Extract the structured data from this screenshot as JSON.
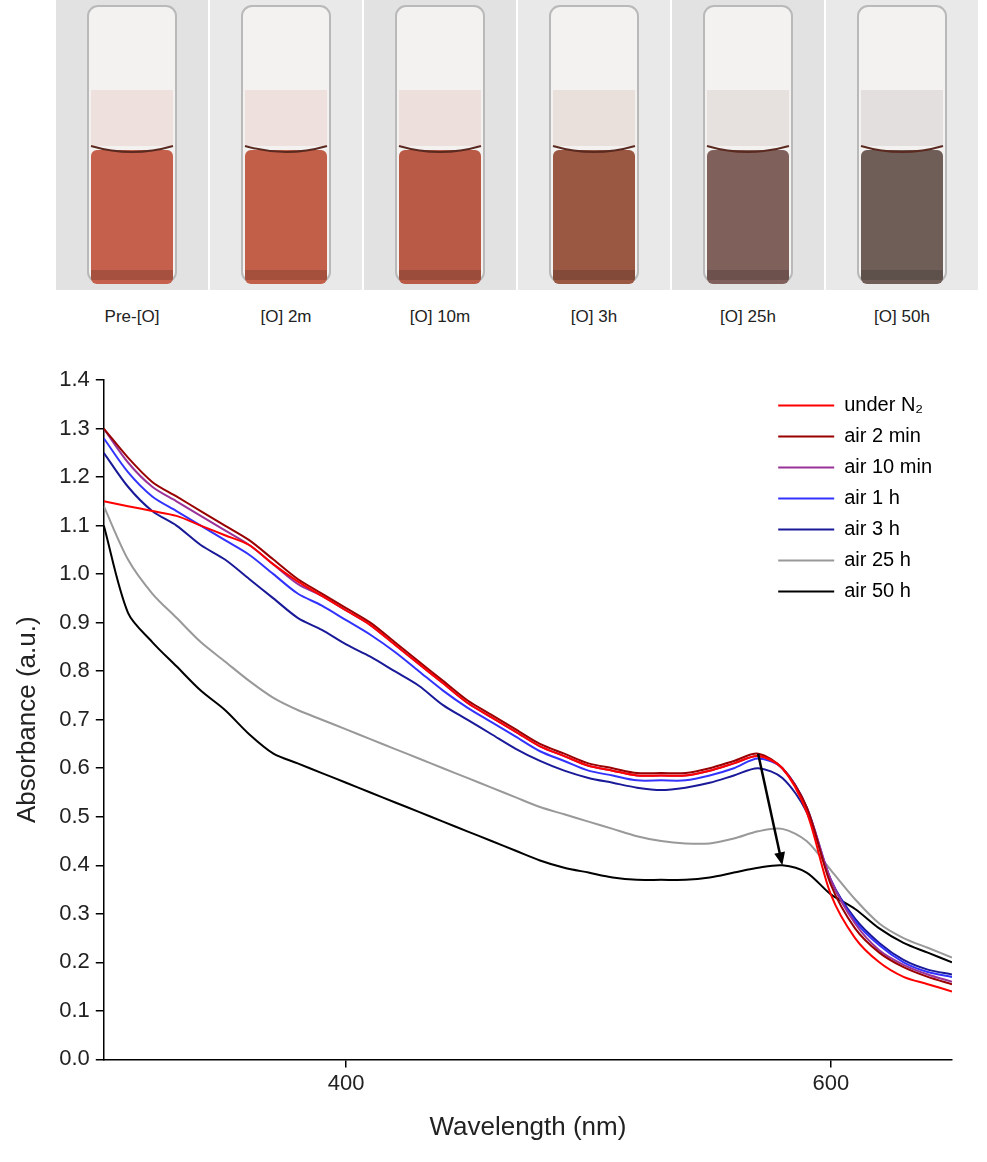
{
  "photos": {
    "labels": [
      "Pre-[O]",
      "[O] 2m",
      "[O] 10m",
      "[O] 3h",
      "[O] 25h",
      "[O] 50h"
    ],
    "colors": [
      "#c4604b",
      "#c25f48",
      "#b85a46",
      "#9a5843",
      "#80605a",
      "#6f5e58"
    ]
  },
  "chart_data": {
    "type": "line",
    "x_label": "Wavelength (nm)",
    "y_label": "Absorbance (a.u.)",
    "x": [
      300,
      310,
      320,
      330,
      340,
      350,
      360,
      370,
      380,
      390,
      400,
      410,
      420,
      430,
      440,
      450,
      460,
      470,
      480,
      490,
      500,
      510,
      520,
      530,
      540,
      550,
      560,
      570,
      580,
      590,
      600,
      610,
      620,
      630,
      640,
      650
    ],
    "series": [
      {
        "name": "under N₂",
        "color": "#ff0000",
        "values": [
          1.15,
          1.14,
          1.13,
          1.12,
          1.1,
          1.08,
          1.06,
          1.02,
          0.985,
          0.955,
          0.925,
          0.895,
          0.855,
          0.815,
          0.775,
          0.735,
          0.705,
          0.675,
          0.645,
          0.625,
          0.605,
          0.595,
          0.585,
          0.585,
          0.585,
          0.595,
          0.61,
          0.625,
          0.6,
          0.51,
          0.34,
          0.25,
          0.2,
          0.17,
          0.155,
          0.14
        ]
      },
      {
        "name": "air 2 min",
        "color": "#990000",
        "values": [
          1.3,
          1.24,
          1.19,
          1.16,
          1.13,
          1.1,
          1.07,
          1.03,
          0.99,
          0.96,
          0.93,
          0.9,
          0.86,
          0.82,
          0.78,
          0.74,
          0.71,
          0.68,
          0.65,
          0.63,
          0.61,
          0.6,
          0.59,
          0.59,
          0.59,
          0.6,
          0.615,
          0.63,
          0.6,
          0.52,
          0.36,
          0.27,
          0.22,
          0.19,
          0.17,
          0.155
        ]
      },
      {
        "name": "air 10 min",
        "color": "#993399",
        "values": [
          1.3,
          1.23,
          1.18,
          1.15,
          1.12,
          1.09,
          1.06,
          1.02,
          0.98,
          0.955,
          0.925,
          0.895,
          0.855,
          0.815,
          0.775,
          0.735,
          0.705,
          0.675,
          0.645,
          0.625,
          0.605,
          0.595,
          0.585,
          0.585,
          0.585,
          0.595,
          0.61,
          0.625,
          0.6,
          0.52,
          0.37,
          0.28,
          0.225,
          0.195,
          0.175,
          0.16
        ]
      },
      {
        "name": "air 1 h",
        "color": "#3333ff",
        "values": [
          1.28,
          1.21,
          1.16,
          1.13,
          1.1,
          1.07,
          1.04,
          1.0,
          0.96,
          0.935,
          0.905,
          0.875,
          0.84,
          0.8,
          0.76,
          0.725,
          0.695,
          0.665,
          0.635,
          0.615,
          0.595,
          0.585,
          0.575,
          0.575,
          0.575,
          0.585,
          0.6,
          0.62,
          0.6,
          0.52,
          0.37,
          0.285,
          0.235,
          0.2,
          0.18,
          0.17
        ]
      },
      {
        "name": "air 3 h",
        "color": "#1a1a99",
        "values": [
          1.25,
          1.18,
          1.13,
          1.1,
          1.06,
          1.03,
          0.99,
          0.95,
          0.91,
          0.885,
          0.855,
          0.83,
          0.8,
          0.77,
          0.73,
          0.7,
          0.67,
          0.64,
          0.615,
          0.595,
          0.58,
          0.57,
          0.56,
          0.555,
          0.56,
          0.57,
          0.585,
          0.6,
          0.58,
          0.51,
          0.37,
          0.29,
          0.24,
          0.205,
          0.185,
          0.175
        ]
      },
      {
        "name": "air 25 h",
        "color": "#999999",
        "values": [
          1.14,
          1.03,
          0.96,
          0.91,
          0.86,
          0.82,
          0.78,
          0.745,
          0.72,
          0.7,
          0.68,
          0.66,
          0.64,
          0.62,
          0.6,
          0.58,
          0.56,
          0.54,
          0.52,
          0.505,
          0.49,
          0.475,
          0.46,
          0.45,
          0.445,
          0.445,
          0.455,
          0.47,
          0.475,
          0.45,
          0.39,
          0.33,
          0.28,
          0.25,
          0.23,
          0.21
        ]
      },
      {
        "name": "air 50 h",
        "color": "#000000",
        "values": [
          1.1,
          0.92,
          0.86,
          0.81,
          0.76,
          0.72,
          0.67,
          0.63,
          0.61,
          0.59,
          0.57,
          0.55,
          0.53,
          0.51,
          0.49,
          0.47,
          0.45,
          0.43,
          0.41,
          0.395,
          0.385,
          0.375,
          0.37,
          0.37,
          0.37,
          0.375,
          0.385,
          0.395,
          0.4,
          0.385,
          0.34,
          0.31,
          0.27,
          0.24,
          0.22,
          0.2
        ]
      }
    ],
    "xlim": [
      300,
      650
    ],
    "xticks": [
      400,
      600
    ],
    "ylim": [
      0,
      1.4
    ],
    "yticks": [
      {
        "value": 0,
        "label": "0.0"
      },
      0.1,
      0.2,
      0.3,
      0.4,
      0.5,
      0.6,
      0.7,
      0.8,
      0.9,
      {
        "value": 1,
        "label": "1.0"
      },
      1.1,
      1.2,
      1.3,
      1.4
    ],
    "grid": false,
    "legend": "upper right"
  }
}
